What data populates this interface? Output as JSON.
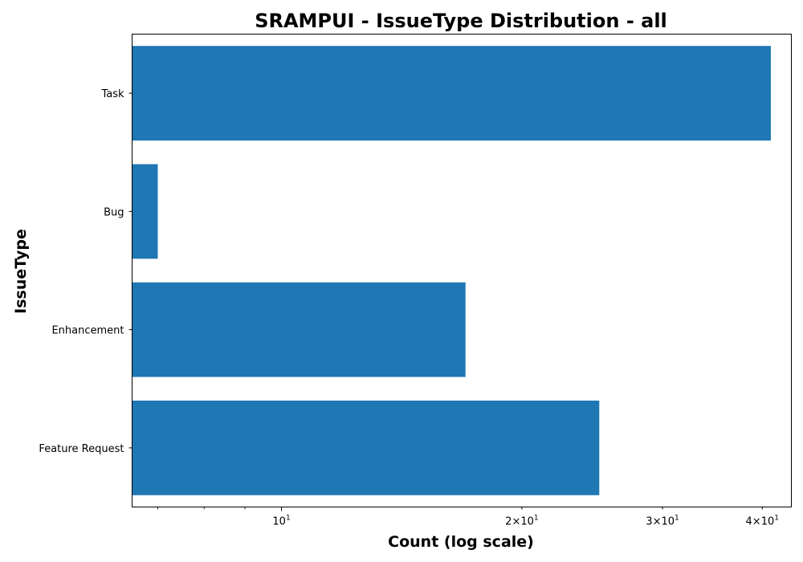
{
  "chart_data": {
    "type": "bar",
    "orientation": "horizontal",
    "title": "SRAMPUI - IssueType Distribution - all",
    "xlabel": "Count (log scale)",
    "ylabel": "IssueType",
    "x_scale": "log",
    "xlim": [
      6.5,
      43.5
    ],
    "categories": [
      "Task",
      "Bug",
      "Enhancement",
      "Feature Request"
    ],
    "values": [
      41,
      7,
      17,
      25
    ],
    "x_ticks": [
      {
        "value": 10,
        "mantissa": "",
        "base": "10",
        "exponent": "1"
      },
      {
        "value": 20,
        "mantissa": "2×",
        "base": "10",
        "exponent": "1"
      },
      {
        "value": 30,
        "mantissa": "3×",
        "base": "10",
        "exponent": "1"
      },
      {
        "value": 40,
        "mantissa": "4×",
        "base": "10",
        "exponent": "1"
      }
    ],
    "x_minor_ticks": [
      7,
      8,
      9
    ],
    "bar_color": "#1f77b4",
    "grid": false,
    "legend": "none"
  }
}
